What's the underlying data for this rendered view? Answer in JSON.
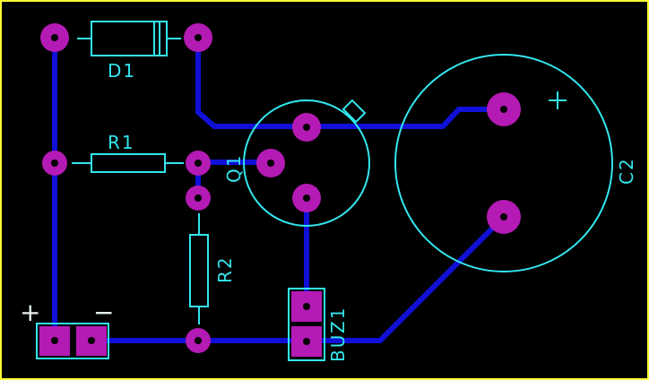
{
  "board": {
    "border_color": "#ffff33",
    "silk_color": "#33e6ee",
    "trace_color": "#1010d8",
    "pad_color": "#b41ab4"
  },
  "components": {
    "d1": "D1",
    "r1": "R1",
    "r2": "R2",
    "q1": "Q1",
    "c2": "C2",
    "buz1": "BUZ1"
  },
  "polarity": {
    "c2_plus": "+",
    "power_plus": "+",
    "power_minus": "−"
  }
}
